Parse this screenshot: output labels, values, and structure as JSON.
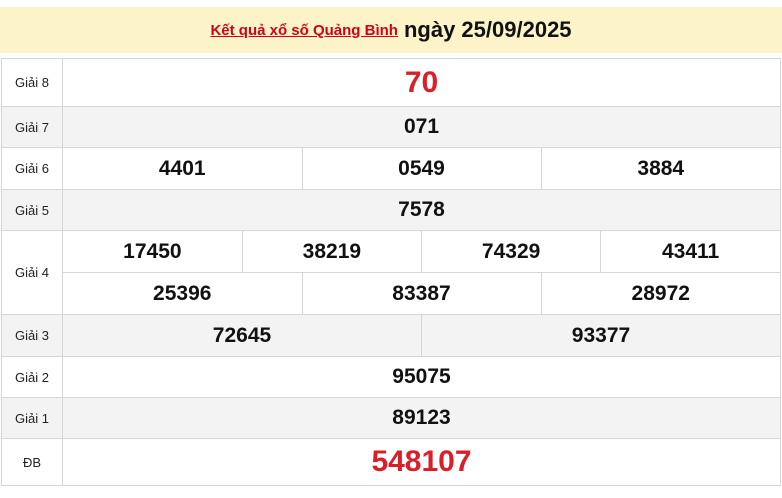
{
  "header": {
    "link_text": "Kết quả xổ số Quảng Bình",
    "date_text": "ngày 25/09/2025"
  },
  "colors": {
    "accent_red": "#d7202a",
    "header_bg": "#fcf3c9"
  },
  "prizes": [
    {
      "label": "Giải 8",
      "numbers": [
        "70"
      ]
    },
    {
      "label": "Giải 7",
      "numbers": [
        "071"
      ]
    },
    {
      "label": "Giải 6",
      "numbers": [
        "4401",
        "0549",
        "3884"
      ]
    },
    {
      "label": "Giải 5",
      "numbers": [
        "7578"
      ]
    },
    {
      "label": "Giải 4",
      "numbers": [
        "17450",
        "38219",
        "74329",
        "43411",
        "25396",
        "83387",
        "28972"
      ]
    },
    {
      "label": "Giải 3",
      "numbers": [
        "72645",
        "93377"
      ]
    },
    {
      "label": "Giải 2",
      "numbers": [
        "95075"
      ]
    },
    {
      "label": "Giải 1",
      "numbers": [
        "89123"
      ]
    },
    {
      "label": "ĐB",
      "numbers": [
        "548107"
      ]
    }
  ]
}
